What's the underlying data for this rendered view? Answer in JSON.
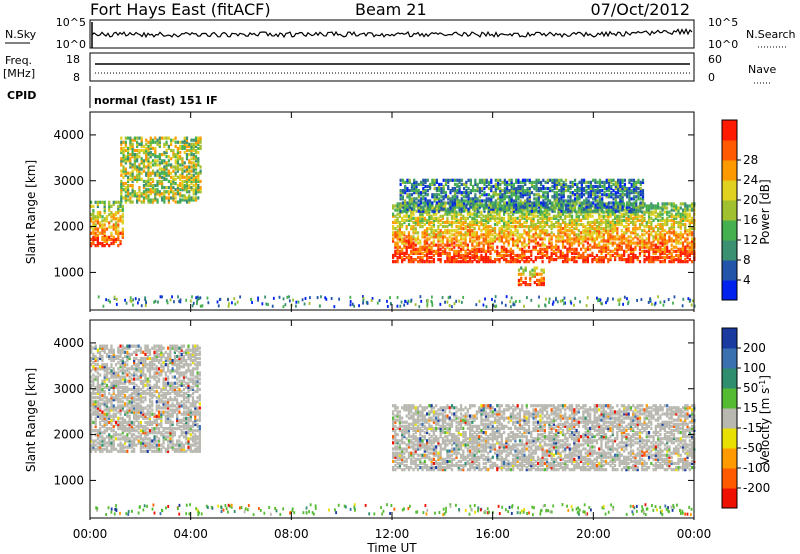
{
  "header": {
    "station": "Fort Hays East (fitACF)",
    "beam": "Beam 21",
    "date": "07/Oct/2012"
  },
  "noise_panel": {
    "left_label": "N.Sky",
    "left_top": "10^5",
    "left_bottom": "10^0",
    "right_top": "10^5",
    "right_bottom": "10^0",
    "right_label": "N.Search"
  },
  "freq_panel": {
    "left_label_1": "Freq.",
    "left_label_2": "[MHz]",
    "left_top": "18",
    "left_bottom": "8",
    "right_top": "60",
    "right_bottom": "0",
    "right_label": "Nave"
  },
  "cpid": {
    "label": "CPID",
    "text": "normal (fast) 151 IF"
  },
  "chart_data": [
    {
      "type": "heatmap",
      "name": "power",
      "ylabel": "Slant Range [km]",
      "xlabel": "",
      "yticks": [
        1000,
        2000,
        3000,
        4000
      ],
      "ylim": [
        180,
        4500
      ],
      "xlim_hours": [
        0,
        24
      ],
      "colorbar": {
        "label": "Power [dB]",
        "ticks": [
          "4",
          "8",
          "12",
          "16",
          "20",
          "24",
          "28"
        ],
        "colors": [
          "#0022ee",
          "#2255aa",
          "#3a9070",
          "#44b050",
          "#a0c030",
          "#e0d020",
          "#ff9900",
          "#ff5a00",
          "#ff1a00"
        ]
      },
      "regions": [
        {
          "t0": 0.0,
          "t1": 1.3,
          "r0": 1550,
          "r1": 2500,
          "level": "high"
        },
        {
          "t0": 1.2,
          "t1": 4.4,
          "r0": 2500,
          "r1": 3900,
          "level": "mid"
        },
        {
          "t0": 12.0,
          "t1": 24.0,
          "r0": 1200,
          "r1": 2500,
          "level": "high"
        },
        {
          "t0": 12.3,
          "t1": 22.0,
          "r0": 2300,
          "r1": 3000,
          "level": "low"
        },
        {
          "t0": 17.0,
          "t1": 18.0,
          "r0": 700,
          "r1": 1100,
          "level": "high"
        }
      ]
    },
    {
      "type": "heatmap",
      "name": "velocity",
      "ylabel": "Slant Range [km]",
      "xlabel": "Time UT",
      "yticks": [
        1000,
        2000,
        3000,
        4000
      ],
      "xticks": [
        "00:00",
        "04:00",
        "08:00",
        "12:00",
        "16:00",
        "20:00",
        "00:00"
      ],
      "ylim": [
        180,
        4500
      ],
      "xlim_hours": [
        0,
        24
      ],
      "colorbar": {
        "label": "Velocity [m s^-1]",
        "ticks": [
          "200",
          "100",
          "50",
          "15",
          "-15",
          "-50",
          "-100",
          "-200"
        ],
        "colors": [
          "#1a3aa0",
          "#3a70b0",
          "#2e8e6e",
          "#55bb33",
          "#b8b8b0",
          "#e8e000",
          "#ff9a00",
          "#ff5a00",
          "#ee1100"
        ]
      },
      "regions": [
        {
          "t0": 0.0,
          "t1": 4.4,
          "r0": 1600,
          "r1": 3900,
          "level": "ground"
        },
        {
          "t0": 12.0,
          "t1": 24.0,
          "r0": 1200,
          "r1": 2600,
          "level": "ground"
        }
      ]
    }
  ]
}
